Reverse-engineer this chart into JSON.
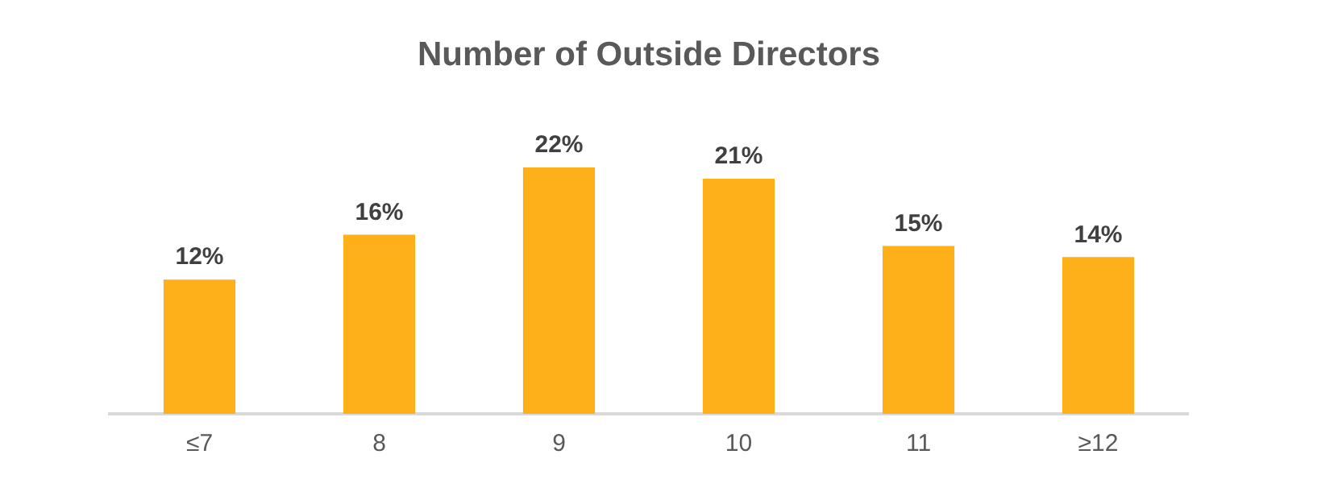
{
  "chart_data": {
    "type": "bar",
    "title": "Number of Outside Directors",
    "categories": [
      "≤7",
      "8",
      "9",
      "10",
      "11",
      "≥12"
    ],
    "values": [
      12,
      16,
      22,
      21,
      15,
      14
    ],
    "value_labels": [
      "12%",
      "16%",
      "22%",
      "21%",
      "15%",
      "14%"
    ],
    "color": "#fdb01a",
    "grid": false,
    "legend": false
  }
}
